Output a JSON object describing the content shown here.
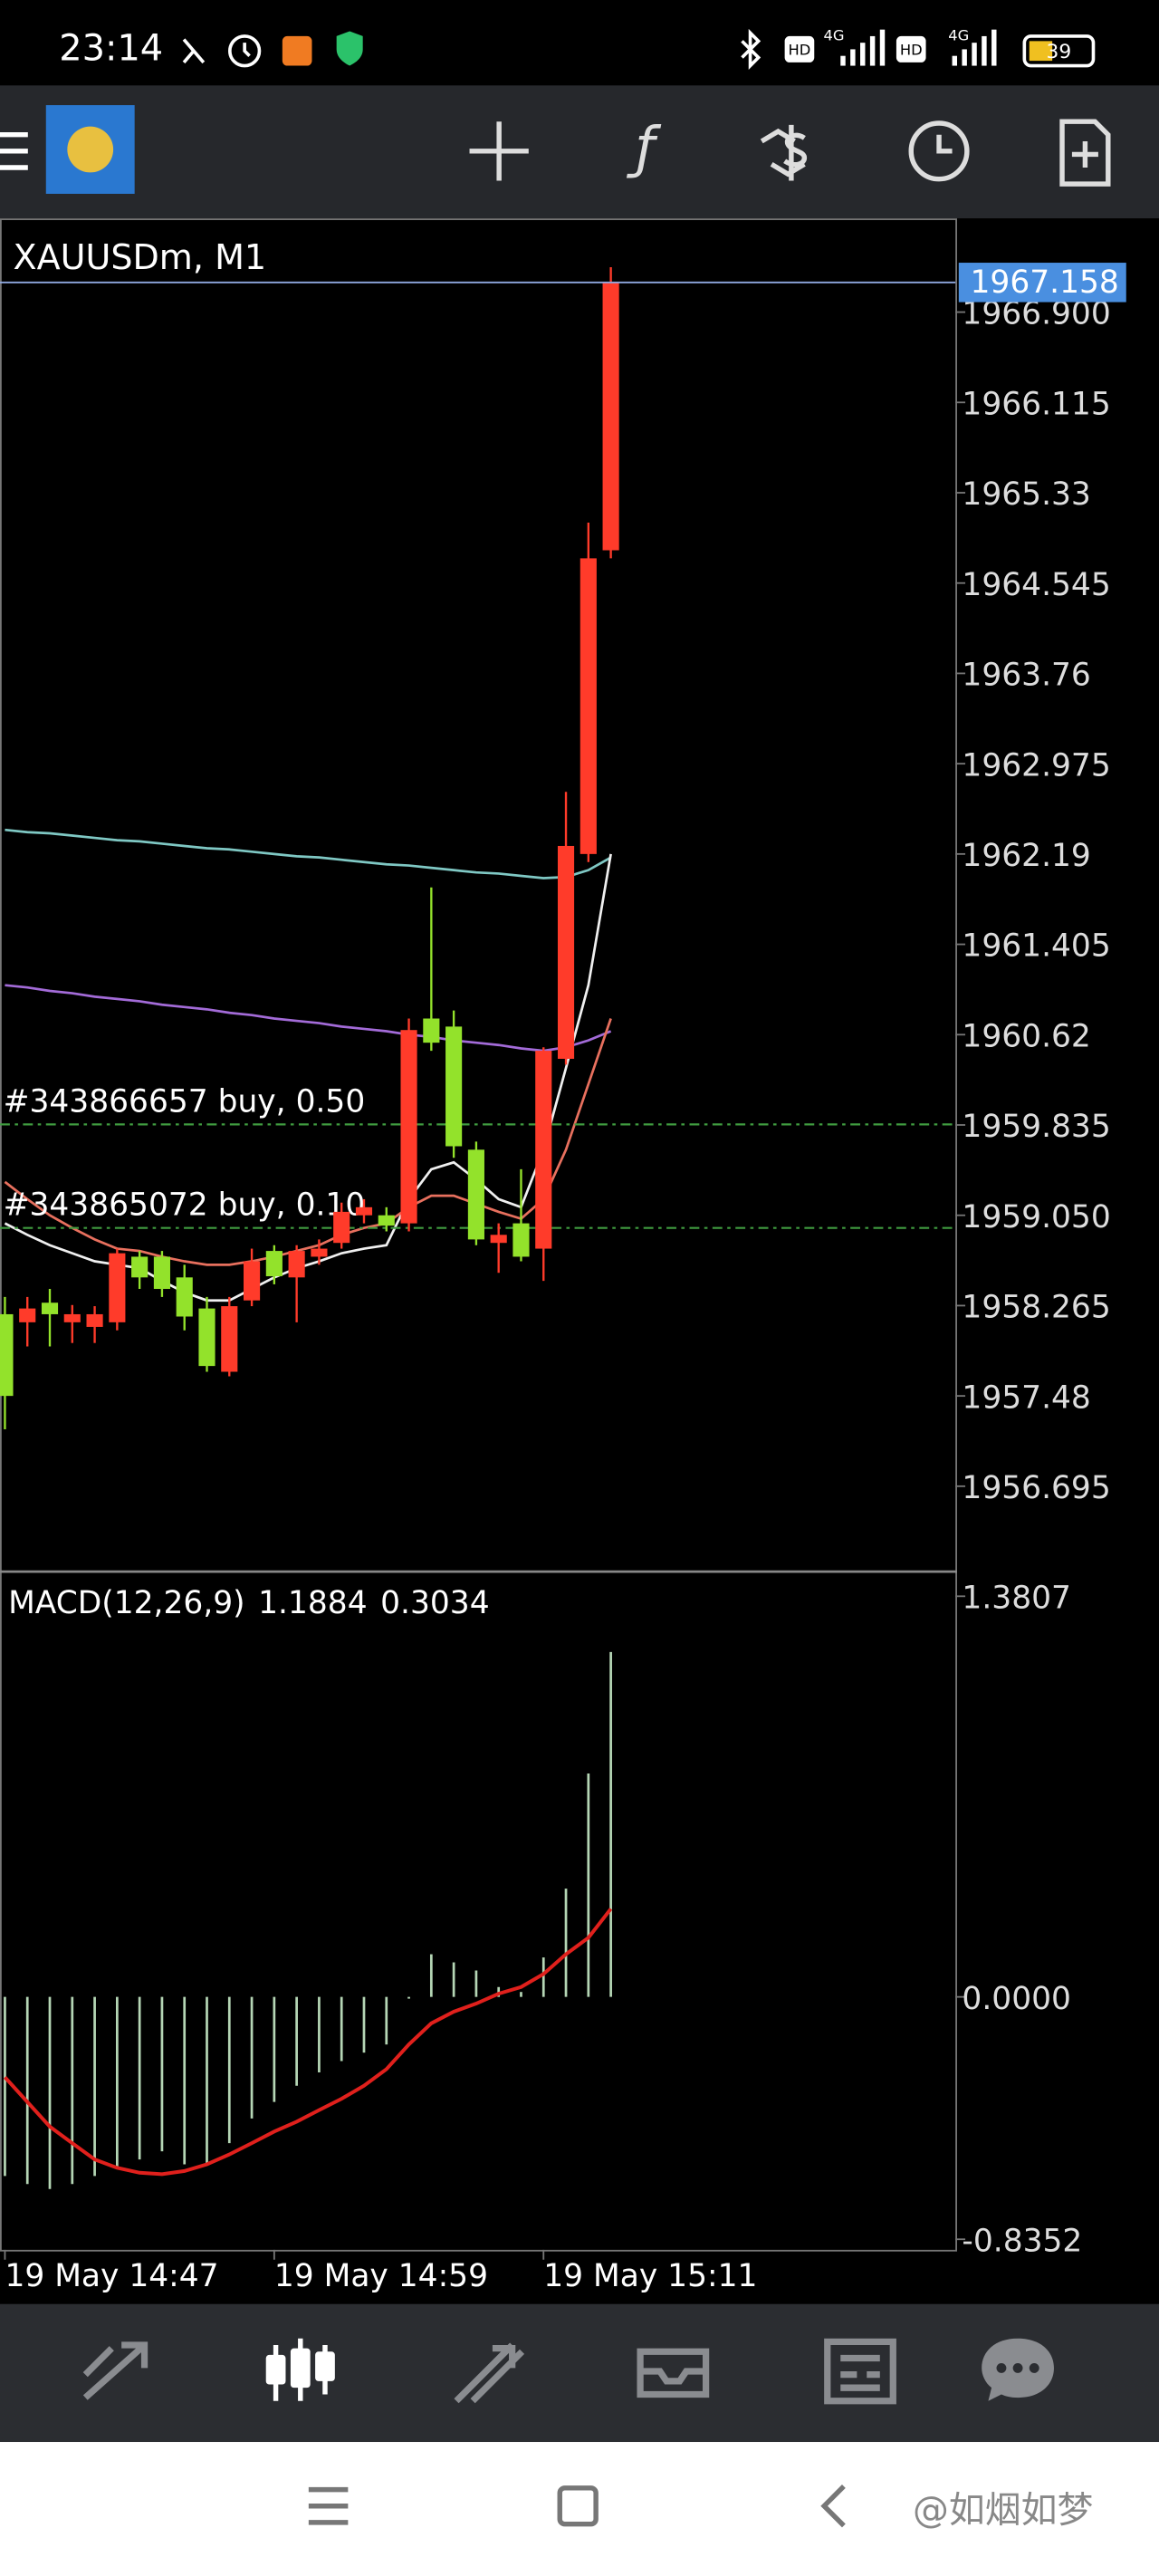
{
  "status_bar": {
    "time": "23:14",
    "hd_1": "HD",
    "network_1": "4G",
    "hd_2": "HD",
    "network_2": "4G",
    "battery": "39"
  },
  "chart_data": [
    {
      "type": "candlestick",
      "title": "XAUUSDm, M1",
      "categories": [
        "19 May 14:47",
        null,
        null,
        null,
        null,
        null,
        null,
        null,
        null,
        null,
        null,
        null,
        "19 May 14:59",
        null,
        null,
        null,
        null,
        null,
        null,
        null,
        null,
        null,
        null,
        null,
        "19 May 15:11",
        null,
        null,
        null
      ],
      "open": [
        1958.19,
        1958.12,
        1958.29,
        1958.12,
        1958.08,
        1958.12,
        1958.69,
        1958.69,
        1958.51,
        1958.24,
        1957.69,
        1958.31,
        1958.74,
        1958.51,
        1958.69,
        1958.81,
        1959.05,
        1959.05,
        1958.98,
        1960.76,
        1960.69,
        1959.62,
        1958.81,
        1958.98,
        1958.76,
        1960.41,
        1962.19,
        1964.83
      ],
      "high": [
        1958.34,
        1958.34,
        1958.41,
        1958.27,
        1958.26,
        1958.76,
        1958.74,
        1958.74,
        1958.62,
        1958.34,
        1958.34,
        1958.76,
        1958.79,
        1958.79,
        1958.84,
        1959.16,
        1959.19,
        1959.12,
        1960.76,
        1961.9,
        1960.83,
        1959.69,
        1958.98,
        1959.45,
        1960.51,
        1962.73,
        1965.07,
        1967.29
      ],
      "low": [
        1957.19,
        1957.91,
        1957.91,
        1957.94,
        1957.94,
        1958.05,
        1958.41,
        1958.34,
        1958.05,
        1957.69,
        1957.65,
        1958.26,
        1958.45,
        1958.12,
        1958.62,
        1958.76,
        1958.98,
        1958.91,
        1958.91,
        1960.48,
        1959.55,
        1958.79,
        1958.55,
        1958.65,
        1958.48,
        1960.36,
        1962.12,
        1964.76
      ],
      "close": [
        1957.48,
        1958.24,
        1958.19,
        1958.19,
        1958.19,
        1958.72,
        1958.51,
        1958.41,
        1958.17,
        1957.74,
        1958.26,
        1958.65,
        1958.52,
        1958.74,
        1958.76,
        1959.08,
        1959.12,
        1958.96,
        1960.66,
        1960.55,
        1959.65,
        1958.84,
        1958.88,
        1958.69,
        1960.48,
        1962.26,
        1964.76,
        1967.158
      ],
      "up_color": "#ff3b2a",
      "down_color": "#93e22b",
      "overlays": [
        {
          "color": "#7fc8c4",
          "values": [
            1962.4,
            1962.38,
            1962.37,
            1962.35,
            1962.33,
            1962.31,
            1962.3,
            1962.28,
            1962.26,
            1962.24,
            1962.23,
            1962.21,
            1962.19,
            1962.17,
            1962.16,
            1962.14,
            1962.12,
            1962.1,
            1962.09,
            1962.07,
            1962.05,
            1962.03,
            1962.02,
            1962.0,
            1961.98,
            1961.99,
            1962.05,
            1962.16
          ]
        },
        {
          "color": "#a36bd8",
          "values": [
            1961.05,
            1961.03,
            1961.0,
            1960.98,
            1960.95,
            1960.93,
            1960.91,
            1960.88,
            1960.86,
            1960.84,
            1960.81,
            1960.79,
            1960.76,
            1960.74,
            1960.72,
            1960.69,
            1960.67,
            1960.65,
            1960.62,
            1960.6,
            1960.57,
            1960.55,
            1960.53,
            1960.5,
            1960.48,
            1960.51,
            1960.57,
            1960.65
          ]
        },
        {
          "color": "#f0f0f0",
          "values": [
            1958.98,
            1958.88,
            1958.79,
            1958.72,
            1958.65,
            1958.62,
            1958.59,
            1958.48,
            1958.38,
            1958.31,
            1958.31,
            1958.41,
            1958.51,
            1958.59,
            1958.65,
            1958.72,
            1958.76,
            1958.79,
            1959.19,
            1959.45,
            1959.51,
            1959.36,
            1959.19,
            1959.12,
            1959.62,
            1960.33,
            1961.05,
            1962.19
          ]
        },
        {
          "color": "#e8705e",
          "values": [
            1959.34,
            1959.19,
            1959.05,
            1958.94,
            1958.84,
            1958.76,
            1958.74,
            1958.69,
            1958.65,
            1958.62,
            1958.62,
            1958.65,
            1958.69,
            1958.74,
            1958.79,
            1958.88,
            1958.94,
            1958.98,
            1959.12,
            1959.22,
            1959.22,
            1959.15,
            1959.08,
            1959.02,
            1959.19,
            1959.62,
            1960.19,
            1960.76
          ]
        }
      ],
      "last_price": 1967.158,
      "last_price_color": "#4a8fe0",
      "orders": [
        {
          "label": "#343866657 buy, 0.50",
          "price": 1959.84,
          "color": "#3f9b3f"
        },
        {
          "label": "#343865072 buy, 0.10",
          "price": 1958.94,
          "color": "#3f9b3f"
        }
      ],
      "ylim": [
        1955.953,
        1967.714
      ],
      "yticks": [
        {
          "value": 1966.9,
          "label": "1966.900"
        },
        1966.115,
        1965.33,
        1964.545,
        1963.76,
        1962.975,
        1962.19,
        1961.405,
        1960.62,
        1959.835,
        {
          "value": 1959.05,
          "label": "1959.050"
        },
        1958.265,
        1957.48,
        1956.695
      ]
    },
    {
      "type": "macd",
      "title": "MACD(12,26,9)",
      "macd": 1.1884,
      "signal": 0.3034,
      "histogram": {
        "color": "#b5d6b5",
        "values": [
          -0.617,
          -0.645,
          -0.662,
          -0.645,
          -0.617,
          -0.589,
          -0.56,
          -0.532,
          -0.577,
          -0.577,
          -0.504,
          -0.419,
          -0.362,
          -0.306,
          -0.26,
          -0.221,
          -0.192,
          -0.164,
          -0.006,
          0.147,
          0.119,
          0.091,
          0.034,
          0.017,
          0.136,
          0.373,
          0.77,
          1.1884
        ]
      },
      "signal_line": {
        "color": "#e0201c",
        "values": [
          -0.277,
          -0.362,
          -0.447,
          -0.504,
          -0.56,
          -0.589,
          -0.606,
          -0.611,
          -0.6,
          -0.577,
          -0.543,
          -0.504,
          -0.464,
          -0.43,
          -0.39,
          -0.351,
          -0.306,
          -0.249,
          -0.164,
          -0.091,
          -0.051,
          -0.023,
          0.011,
          0.034,
          0.079,
          0.147,
          0.204,
          0.3034
        ]
      },
      "ylim": [
        -0.8716,
        1.4656
      ],
      "yticks": [
        1.3807,
        {
          "value": 0,
          "label": "0.0000"
        },
        {
          "value": -0.8352,
          "label": "-0.8352"
        }
      ]
    }
  ],
  "watermark": "@如烟如梦"
}
